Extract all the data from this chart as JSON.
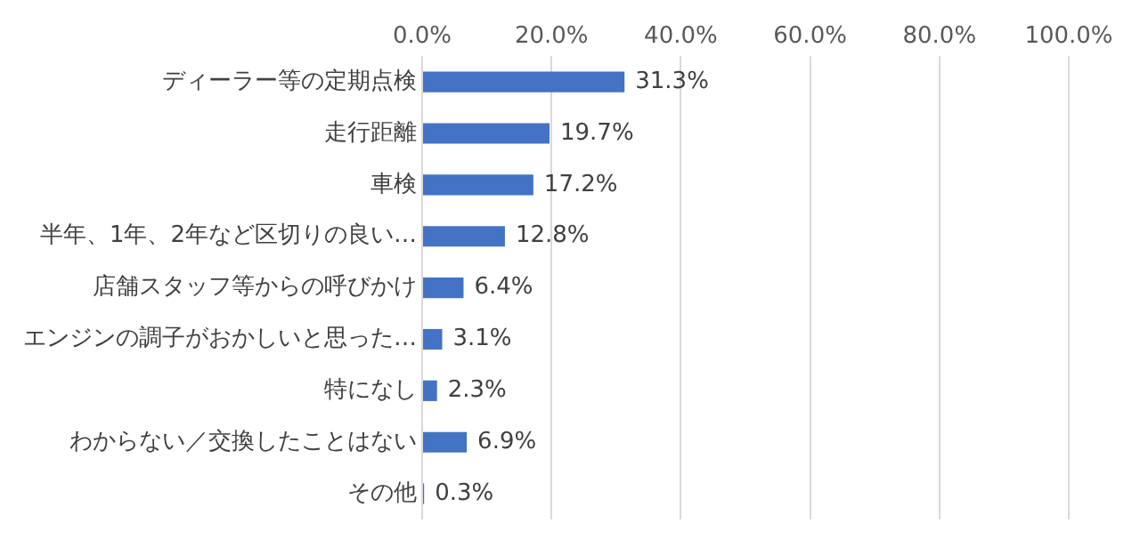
{
  "chart_data": {
    "type": "bar",
    "orientation": "horizontal",
    "categories": [
      "ディーラー等の定期点検",
      "走行距離",
      "車検",
      "半年、1年、2年など区切りの良い…",
      "店舗スタッフ等からの呼びかけ",
      "エンジンの調子がおかしいと思った…",
      "特になし",
      "わからない／交換したことはない",
      "その他"
    ],
    "values": [
      31.3,
      19.7,
      17.2,
      12.8,
      6.4,
      3.1,
      2.3,
      6.9,
      0.3
    ],
    "value_labels": [
      "31.3%",
      "19.7%",
      "17.2%",
      "12.8%",
      "6.4%",
      "3.1%",
      "2.3%",
      "6.9%",
      "0.3%"
    ],
    "color": "#4472c4",
    "xlim": [
      0,
      100
    ],
    "xticks": [
      {
        "value": 0,
        "label": "0.0%"
      },
      {
        "value": 20,
        "label": "20.0%"
      },
      {
        "value": 40,
        "label": "40.0%"
      },
      {
        "value": 60,
        "label": "60.0%"
      },
      {
        "value": 80,
        "label": "80.0%"
      },
      {
        "value": 100,
        "label": "100.0%"
      }
    ],
    "grid": "x",
    "legend": false
  }
}
